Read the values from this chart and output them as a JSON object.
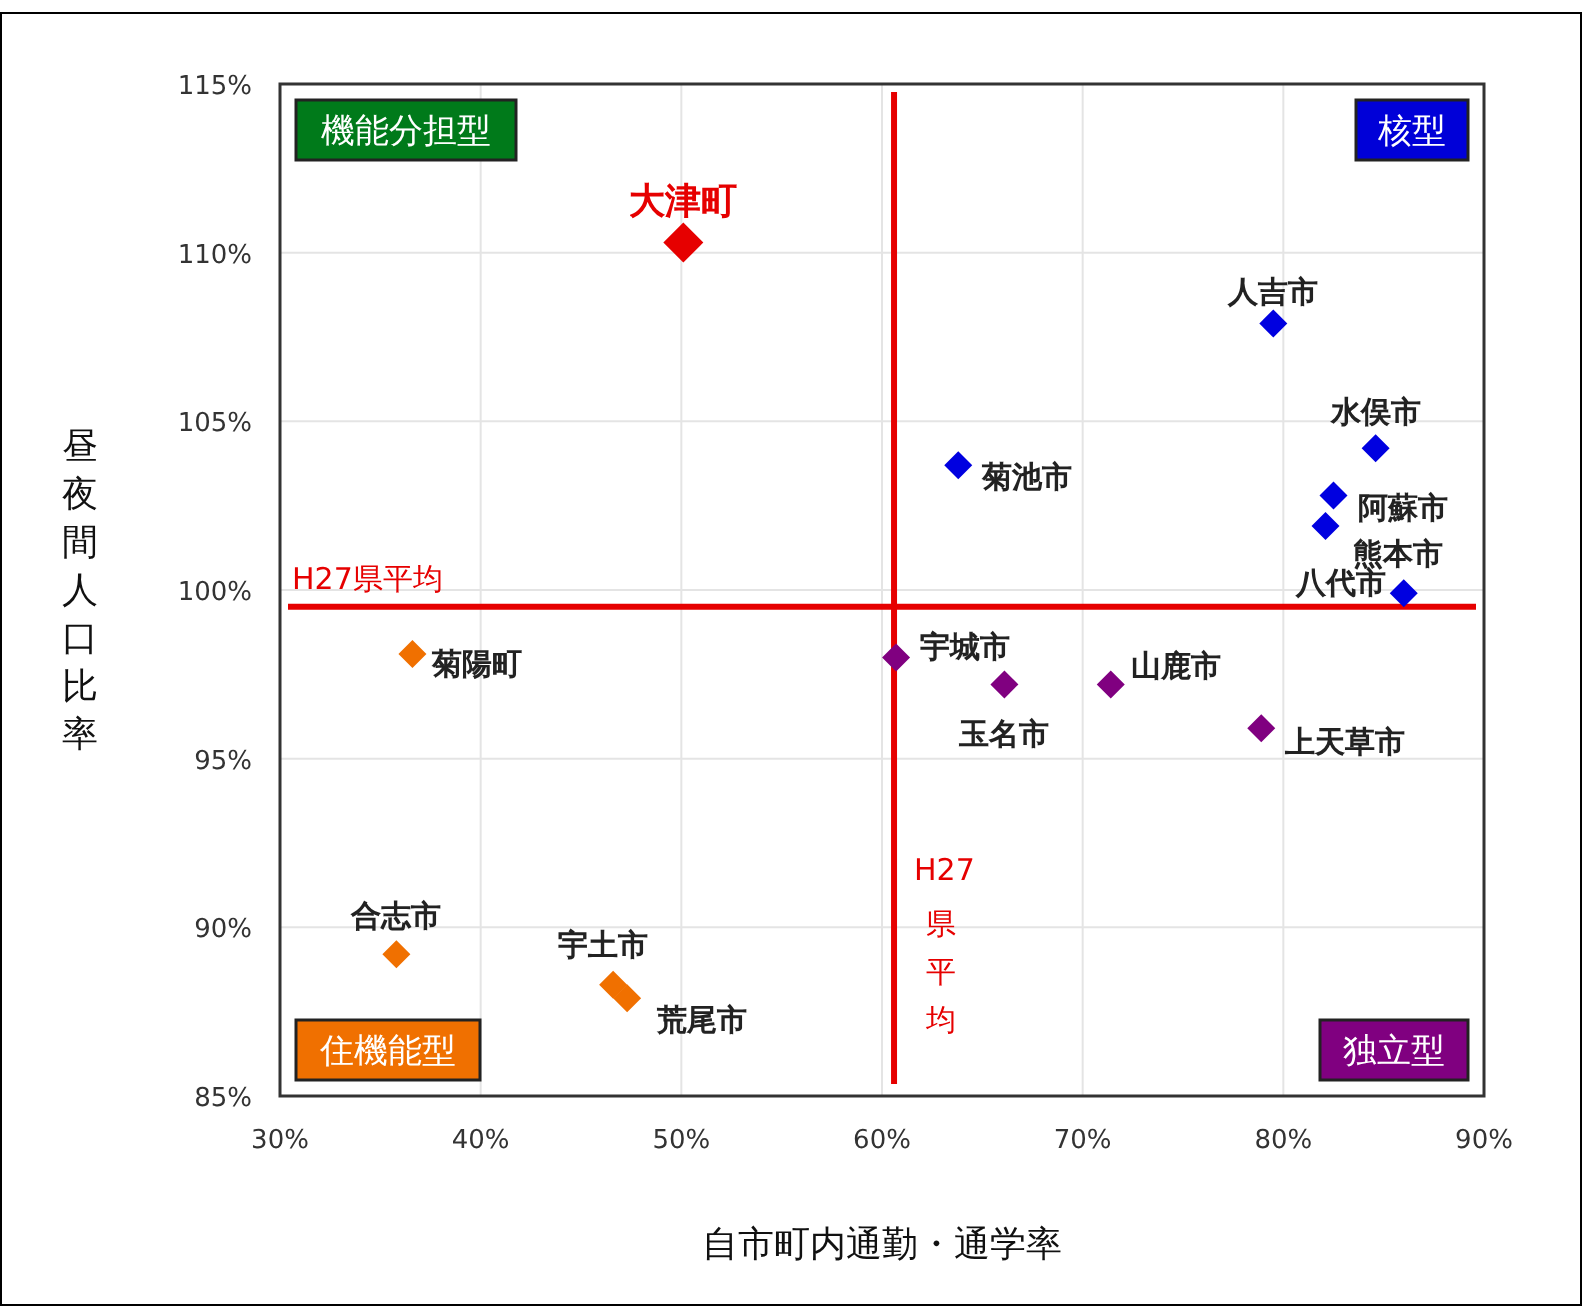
{
  "chart_data": {
    "type": "scatter",
    "xlabel": "自市町内通勤・通学率",
    "ylabel": "昼夜間人口比率",
    "xlim": [
      30,
      90
    ],
    "ylim": [
      85,
      115
    ],
    "xticks": [
      {
        "value": 30,
        "label": "30%"
      },
      {
        "value": 40,
        "label": "40%"
      },
      {
        "value": 50,
        "label": "50%"
      },
      {
        "value": 60,
        "label": "60%"
      },
      {
        "value": 70,
        "label": "70%"
      },
      {
        "value": 80,
        "label": "80%"
      },
      {
        "value": 90,
        "label": "90%"
      }
    ],
    "yticks": [
      {
        "value": 85,
        "label": "85%"
      },
      {
        "value": 90,
        "label": "90%"
      },
      {
        "value": 95,
        "label": "95%"
      },
      {
        "value": 100,
        "label": "100%"
      },
      {
        "value": 105,
        "label": "105%"
      },
      {
        "value": 110,
        "label": "110%"
      },
      {
        "value": 115,
        "label": "115%"
      }
    ],
    "grid": true,
    "marker": "diamond",
    "series": [
      {
        "color": "#e60000",
        "x": [
          50.1
        ],
        "values": [
          110.3
        ]
      },
      {
        "color": "#0000e0",
        "x": [
          79.5,
          84.6,
          82.5,
          82.1,
          86.0,
          63.8
        ],
        "values": [
          107.9,
          104.2,
          102.8,
          101.9,
          99.9,
          103.7
        ]
      },
      {
        "color": "#800080",
        "x": [
          60.7,
          66.1,
          71.4,
          78.9
        ],
        "values": [
          98.0,
          97.2,
          97.2,
          95.9
        ]
      },
      {
        "color": "#f07000",
        "x": [
          36.6,
          35.8,
          46.6,
          47.3
        ],
        "values": [
          98.1,
          89.2,
          88.3,
          87.9
        ]
      }
    ],
    "ref_lines": [
      {
        "axis": "y",
        "value": 99.5,
        "label": "H27県平均",
        "color": "#e60000"
      },
      {
        "axis": "x",
        "value": 60.6,
        "label": "H27県平均",
        "color": "#e60000"
      }
    ],
    "annotations": [
      {
        "text": "大津町",
        "x": 50.1,
        "y": 110.3
      },
      {
        "text": "人吉市",
        "x": 79.5,
        "y": 107.9
      },
      {
        "text": "水俣市",
        "x": 84.6,
        "y": 104.2
      },
      {
        "text": "阿蘇市",
        "x": 82.5,
        "y": 102.8
      },
      {
        "text": "熊本市",
        "x": 82.1,
        "y": 101.9
      },
      {
        "text": "八代市",
        "x": 86.0,
        "y": 99.9
      },
      {
        "text": "菊池市",
        "x": 63.8,
        "y": 103.7
      },
      {
        "text": "宇城市",
        "x": 60.7,
        "y": 98.0
      },
      {
        "text": "玉名市",
        "x": 66.1,
        "y": 97.2
      },
      {
        "text": "山鹿市",
        "x": 71.4,
        "y": 97.2
      },
      {
        "text": "上天草市",
        "x": 78.9,
        "y": 95.9
      },
      {
        "text": "菊陽町",
        "x": 36.6,
        "y": 98.1
      },
      {
        "text": "合志市",
        "x": 35.8,
        "y": 89.2
      },
      {
        "text": "宇土市",
        "x": 46.6,
        "y": 88.3
      },
      {
        "text": "荒尾市",
        "x": 47.3,
        "y": 87.9
      },
      "機能分担型",
      "核型",
      "住機能型",
      "独立型"
    ]
  }
}
